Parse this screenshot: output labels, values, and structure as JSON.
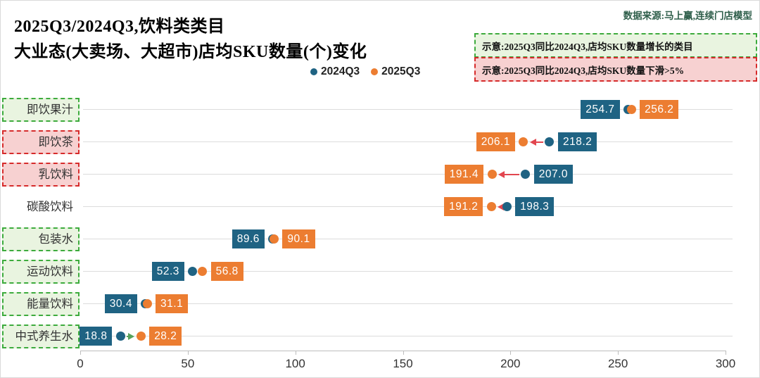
{
  "header": {
    "title_line1": "2025Q3/2024Q3,饮料类类目",
    "title_line2": "大业态(大卖场、大超市)店均SKU数量(个)变化",
    "source": "数据来源:马上赢,连续门店模型",
    "legend": [
      {
        "label": "2024Q3",
        "color": "#1f6383"
      },
      {
        "label": "2025Q3",
        "color": "#ec7d31"
      }
    ],
    "notes": [
      {
        "type": "increase",
        "text": "示意:2025Q3同比2024Q3,店均SKU数量增长的类目"
      },
      {
        "type": "decrease",
        "text": "示意:2025Q3同比2024Q3,店均SKU数量下滑>5%"
      }
    ]
  },
  "chart_data": {
    "type": "dumbbell",
    "title": "大业态(大卖场、大超市)店均SKU数量(个)变化",
    "categories": [
      "即饮果汁",
      "即饮茶",
      "乳饮料",
      "碳酸饮料",
      "包装水",
      "运动饮料",
      "能量饮料",
      "中式养生水"
    ],
    "series": [
      {
        "name": "2024Q3",
        "values": [
          254.7,
          218.2,
          207.0,
          198.3,
          89.6,
          52.3,
          30.4,
          18.8
        ]
      },
      {
        "name": "2025Q3",
        "values": [
          256.2,
          206.1,
          191.4,
          191.2,
          90.1,
          56.8,
          31.1,
          28.2
        ]
      }
    ],
    "highlights": [
      "increase",
      "decrease",
      "decrease",
      "none",
      "increase",
      "increase",
      "increase",
      "increase"
    ],
    "xlabel": "",
    "ylabel": "",
    "xlim": [
      0,
      300
    ],
    "x_ticks": [
      0,
      50,
      100,
      150,
      200,
      250,
      300
    ],
    "grid": "horizontal",
    "legend_position": "top-center",
    "colors": {
      "q2024": "#1f6383",
      "q2025": "#ec7d31",
      "increase_arrow": "#57a25b",
      "decrease_arrow": "#e2464f",
      "highlight_increase_bg": "#e9f4e0",
      "highlight_increase_border": "#3dab3d",
      "highlight_decrease_bg": "#f7d1d1",
      "highlight_decrease_border": "#d62b2b"
    }
  }
}
